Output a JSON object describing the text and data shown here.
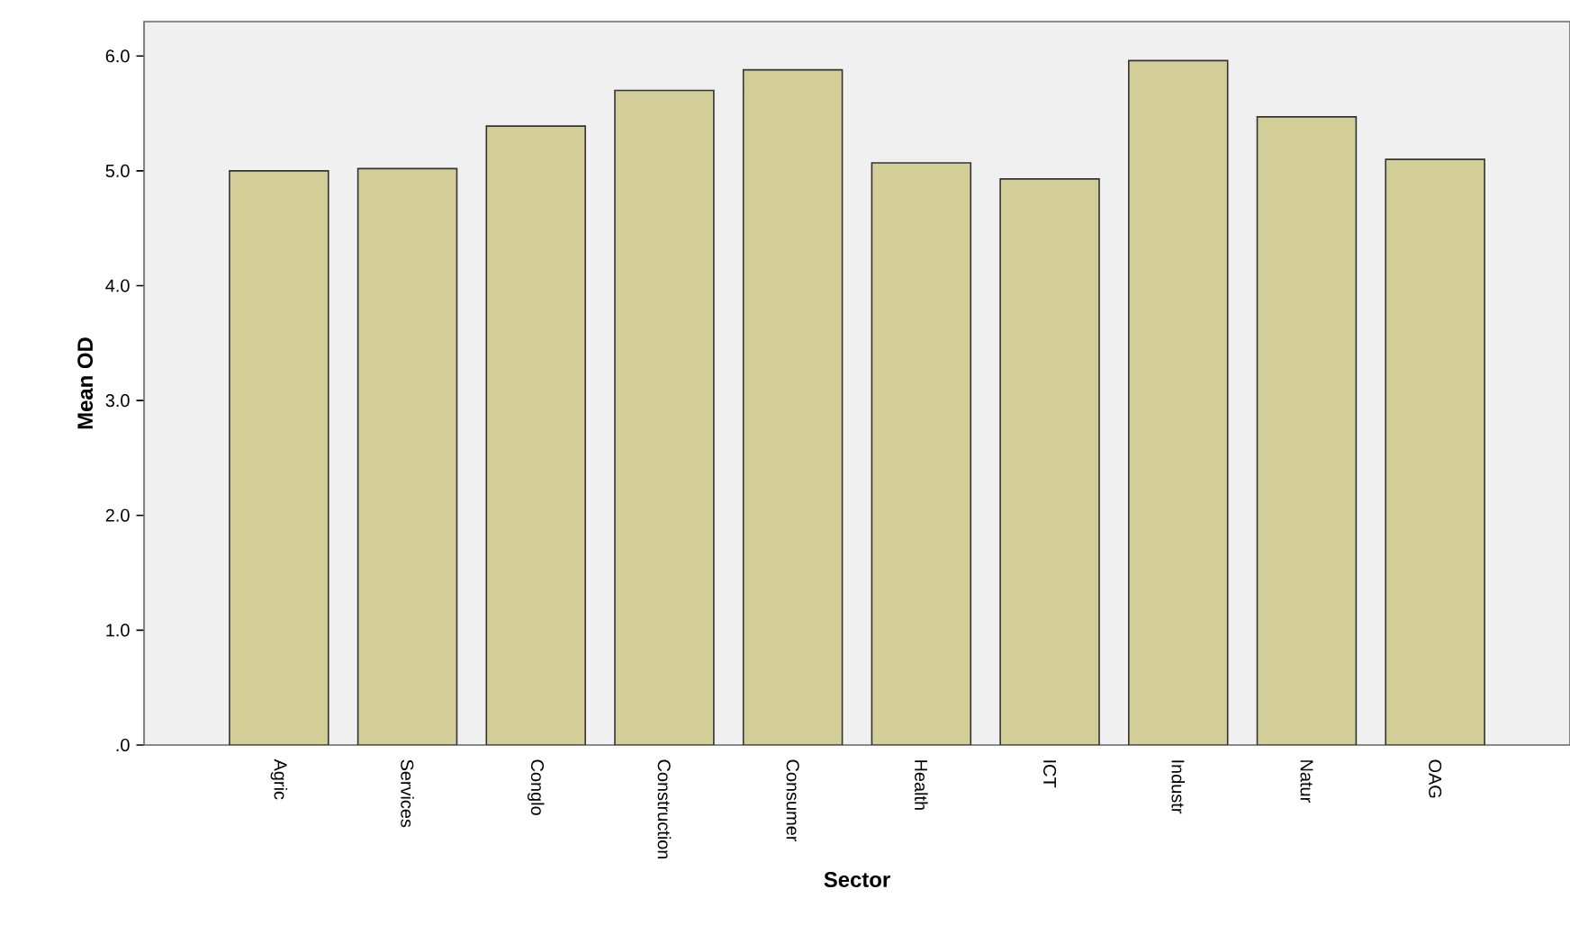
{
  "chart_data": {
    "type": "bar",
    "xlabel": "Sector",
    "ylabel": "Mean OD",
    "categories": [
      "Agric",
      "Services",
      "Conglo",
      "Construction",
      "Consumer",
      "Health",
      "ICT",
      "Industr",
      "Natur",
      "OAG"
    ],
    "values": [
      5.0,
      5.02,
      5.39,
      5.7,
      5.88,
      5.07,
      4.93,
      5.96,
      5.47,
      5.1
    ],
    "color": "#d3ce97",
    "ylim": [
      0,
      6.3
    ],
    "yticks": [
      {
        "value": 0,
        "label": ".0"
      },
      {
        "value": 1,
        "label": "1.0"
      },
      {
        "value": 2,
        "label": "2.0"
      },
      {
        "value": 3,
        "label": "3.0"
      },
      {
        "value": 4,
        "label": "4.0"
      },
      {
        "value": 5,
        "label": "5.0"
      },
      {
        "value": 6,
        "label": "6.0"
      }
    ]
  }
}
